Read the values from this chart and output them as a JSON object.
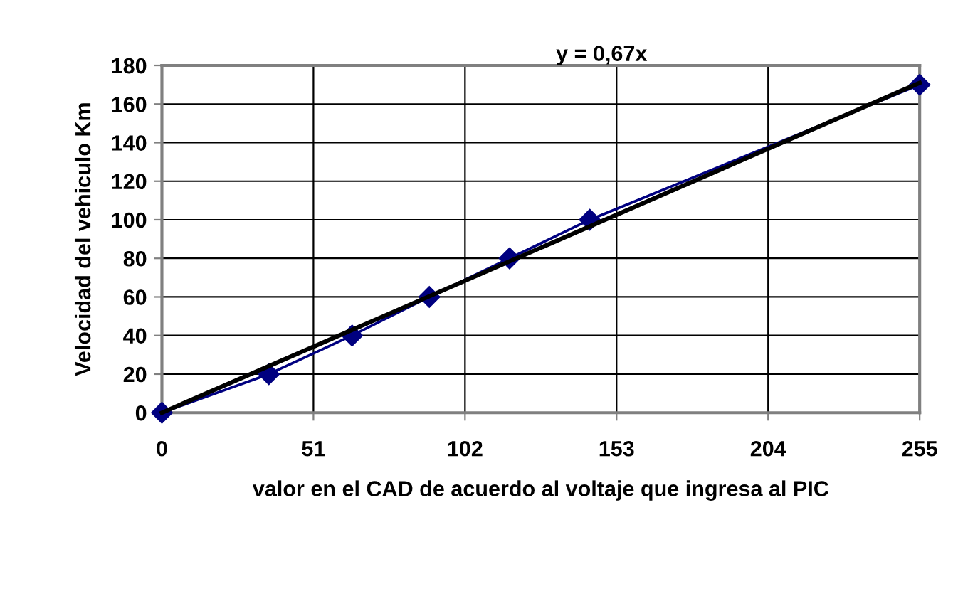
{
  "chart_data": {
    "type": "line",
    "xlabel": "valor en el CAD de acuerdo al voltaje que ingresa al PIC",
    "ylabel": "Velocidad del vehiculo Km",
    "series": [
      {
        "color": "#000080",
        "marker": "diamond",
        "x": [
          0,
          36,
          64,
          90,
          117,
          144,
          255
        ],
        "values": [
          0,
          20,
          40,
          60,
          80,
          100,
          170
        ]
      },
      {
        "color": "#000000",
        "marker": "none",
        "x": [
          0,
          255
        ],
        "values": [
          0,
          171
        ]
      }
    ],
    "annotations": [
      "y = 0,67x"
    ],
    "xlim": [
      0,
      255
    ],
    "xticks": [
      0,
      51,
      102,
      153,
      204,
      255
    ],
    "ylim": [
      0,
      180
    ],
    "yticks": [
      0,
      20,
      40,
      60,
      80,
      100,
      120,
      140,
      160,
      180
    ],
    "grid": true,
    "legend": false
  }
}
